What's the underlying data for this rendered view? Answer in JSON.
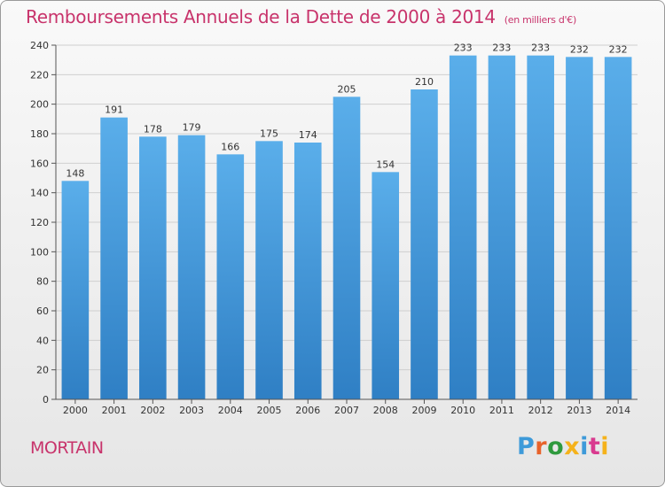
{
  "chart_data": {
    "type": "bar",
    "title": "Remboursements Annuels de la Dette de 2000 à 2014",
    "subtitle": "(en milliers d'€)",
    "categories": [
      "2000",
      "2001",
      "2002",
      "2003",
      "2004",
      "2005",
      "2006",
      "2007",
      "2008",
      "2009",
      "2010",
      "2011",
      "2012",
      "2013",
      "2014"
    ],
    "values": [
      148,
      191,
      178,
      179,
      166,
      175,
      174,
      205,
      154,
      210,
      233,
      233,
      233,
      232,
      232
    ],
    "ylim": [
      0,
      240
    ],
    "yticks": [
      0,
      20,
      40,
      60,
      80,
      100,
      120,
      140,
      160,
      180,
      200,
      220,
      240
    ],
    "grid": true,
    "bar_color": "#4a9fe0"
  },
  "footer": {
    "city": "MORTAIN",
    "logo": "Proxiti",
    "logo_colors": [
      "#3d9ad9",
      "#e8632b",
      "#2f9a3e",
      "#f5b21b",
      "#3d9ad9",
      "#d93a8f",
      "#f5b21b"
    ]
  }
}
